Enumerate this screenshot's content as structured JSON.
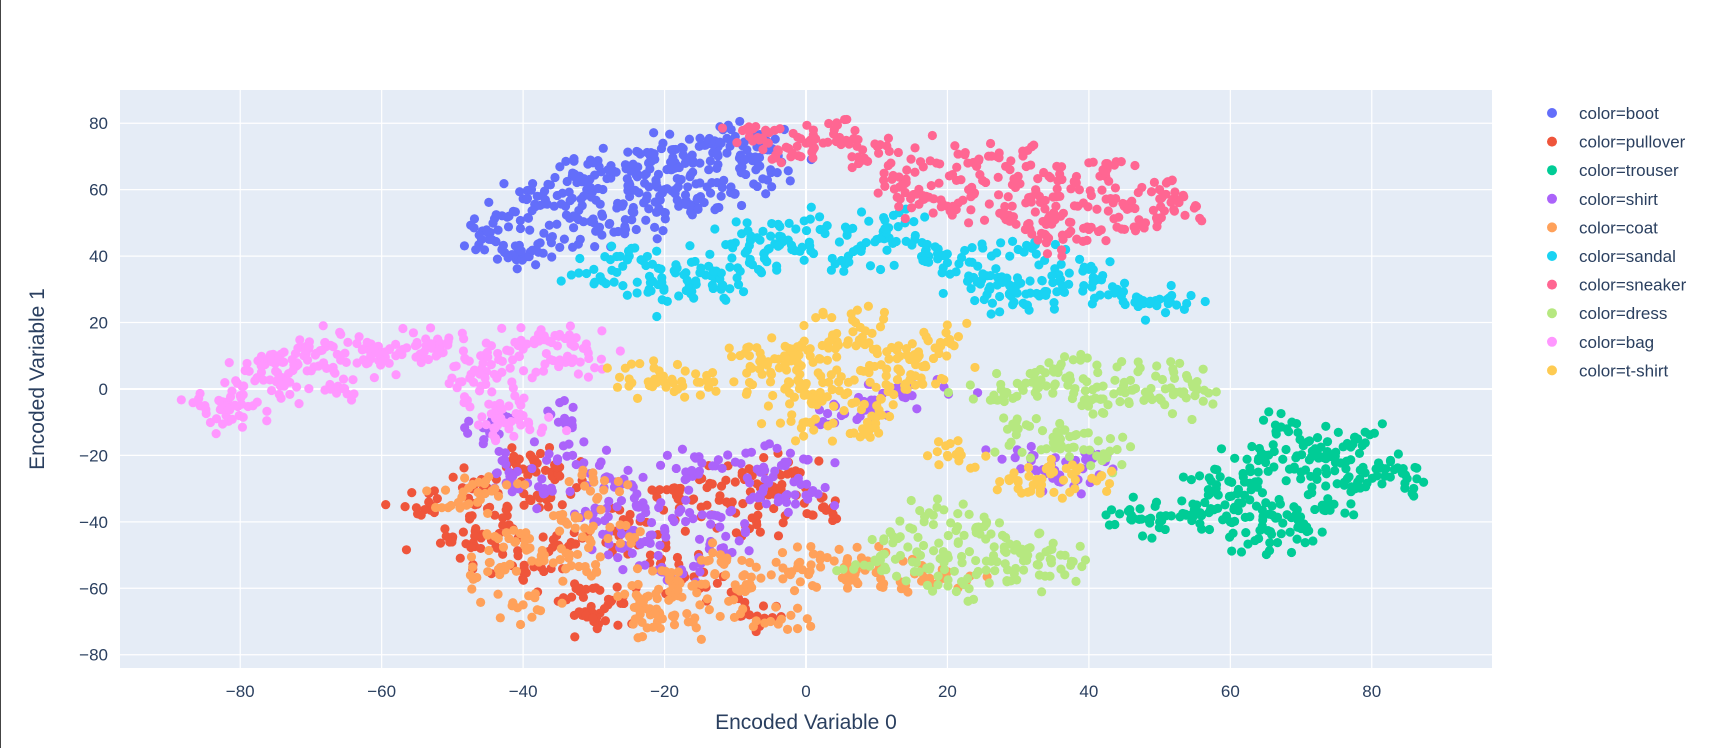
{
  "chart_data": {
    "type": "scatter",
    "xlabel": "Encoded Variable 0",
    "ylabel": "Encoded Variable 1",
    "xlim": [
      -97,
      97
    ],
    "ylim": [
      -84,
      90
    ],
    "x_ticks": [
      -80,
      -60,
      -40,
      -20,
      0,
      20,
      40,
      60,
      80
    ],
    "y_ticks": [
      -80,
      -60,
      -40,
      -20,
      0,
      20,
      40,
      60,
      80
    ],
    "x_tick_labels": [
      "−80",
      "−60",
      "−40",
      "−20",
      "0",
      "20",
      "40",
      "60",
      "80"
    ],
    "y_tick_labels": [
      "−80",
      "−60",
      "−40",
      "−20",
      "0",
      "20",
      "40",
      "60",
      "80"
    ],
    "grid": true,
    "legend_position": "right",
    "plot_background": "#E5ECF6",
    "series": [
      {
        "name": "color=boot",
        "color": "#636efa",
        "points": [
          [
            -45,
            47
          ],
          [
            -42,
            52
          ],
          [
            -38,
            58
          ],
          [
            -34,
            55
          ],
          [
            -31,
            60
          ],
          [
            -28,
            66
          ],
          [
            -25,
            62
          ],
          [
            -22,
            70
          ],
          [
            -19,
            72
          ],
          [
            -16,
            68
          ],
          [
            -13,
            74
          ],
          [
            -10,
            76
          ],
          [
            -8,
            70
          ],
          [
            -5,
            66
          ],
          [
            -30,
            50
          ],
          [
            -26,
            55
          ],
          [
            -20,
            60
          ],
          [
            -36,
            44
          ],
          [
            -40,
            40
          ],
          [
            -15,
            62
          ],
          [
            -12,
            58
          ],
          [
            -24,
            48
          ],
          [
            -33,
            65
          ],
          [
            -18,
            55
          ],
          [
            -6,
            72
          ],
          [
            -43,
            42
          ]
        ]
      },
      {
        "name": "color=pullover",
        "color": "#EF553B",
        "points": [
          [
            -53,
            -35
          ],
          [
            -50,
            -45
          ],
          [
            -47,
            -28
          ],
          [
            -44,
            -38
          ],
          [
            -41,
            -22
          ],
          [
            -38,
            -32
          ],
          [
            -35,
            -47
          ],
          [
            -32,
            -60
          ],
          [
            -28,
            -65
          ],
          [
            -25,
            -40
          ],
          [
            -22,
            -50
          ],
          [
            -18,
            -30
          ],
          [
            -14,
            -35
          ],
          [
            -10,
            -28
          ],
          [
            -7,
            -40
          ],
          [
            -4,
            -30
          ],
          [
            -2,
            -25
          ],
          [
            1,
            -38
          ],
          [
            -40,
            -55
          ],
          [
            -30,
            -70
          ],
          [
            -15,
            -60
          ],
          [
            -8,
            -68
          ],
          [
            -46,
            -48
          ],
          [
            -36,
            -25
          ]
        ]
      },
      {
        "name": "color=trouser",
        "color": "#00cc96",
        "points": [
          [
            46,
            -38
          ],
          [
            50,
            -40
          ],
          [
            55,
            -36
          ],
          [
            58,
            -30
          ],
          [
            62,
            -28
          ],
          [
            65,
            -20
          ],
          [
            68,
            -12
          ],
          [
            70,
            -25
          ],
          [
            72,
            -18
          ],
          [
            75,
            -22
          ],
          [
            78,
            -28
          ],
          [
            82,
            -24
          ],
          [
            85,
            -27
          ],
          [
            66,
            -38
          ],
          [
            70,
            -42
          ],
          [
            64,
            -45
          ],
          [
            60,
            -40
          ],
          [
            73,
            -35
          ],
          [
            78,
            -15
          ],
          [
            62,
            -32
          ]
        ]
      },
      {
        "name": "color=shirt",
        "color": "#ab63fa",
        "points": [
          [
            -42,
            -25
          ],
          [
            -37,
            -30
          ],
          [
            -33,
            -20
          ],
          [
            -30,
            -40
          ],
          [
            -27,
            -28
          ],
          [
            -24,
            -35
          ],
          [
            -20,
            -42
          ],
          [
            -17,
            -25
          ],
          [
            -13,
            -38
          ],
          [
            -10,
            -22
          ],
          [
            -6,
            -30
          ],
          [
            -3,
            -22
          ],
          [
            0,
            -32
          ],
          [
            -26,
            -48
          ],
          [
            -18,
            -55
          ],
          [
            -12,
            -48
          ],
          [
            5,
            -8
          ],
          [
            10,
            -4
          ],
          [
            15,
            -2
          ],
          [
            32,
            -20
          ],
          [
            36,
            -28
          ],
          [
            40,
            -22
          ],
          [
            -45,
            -12
          ],
          [
            -35,
            -10
          ]
        ]
      },
      {
        "name": "color=coat",
        "color": "#FFA15A",
        "points": [
          [
            -48,
            -35
          ],
          [
            -45,
            -55
          ],
          [
            -42,
            -45
          ],
          [
            -40,
            -65
          ],
          [
            -37,
            -50
          ],
          [
            -34,
            -40
          ],
          [
            -31,
            -55
          ],
          [
            -28,
            -45
          ],
          [
            -24,
            -62
          ],
          [
            -21,
            -70
          ],
          [
            -18,
            -58
          ],
          [
            -15,
            -65
          ],
          [
            -12,
            -52
          ],
          [
            -8,
            -60
          ],
          [
            -5,
            -70
          ],
          [
            -2,
            -55
          ],
          [
            2,
            -50
          ],
          [
            6,
            -56
          ],
          [
            10,
            -52
          ],
          [
            14,
            -58
          ],
          [
            20,
            -55
          ],
          [
            -44,
            -30
          ],
          [
            -30,
            -28
          ],
          [
            -22,
            -68
          ]
        ]
      },
      {
        "name": "color=sandal",
        "color": "#19d3f3",
        "points": [
          [
            -22,
            32
          ],
          [
            -18,
            28
          ],
          [
            -15,
            35
          ],
          [
            -12,
            30
          ],
          [
            -8,
            38
          ],
          [
            -5,
            46
          ],
          [
            -2,
            42
          ],
          [
            2,
            48
          ],
          [
            6,
            40
          ],
          [
            10,
            45
          ],
          [
            14,
            50
          ],
          [
            17,
            42
          ],
          [
            20,
            38
          ],
          [
            23,
            34
          ],
          [
            26,
            30
          ],
          [
            29,
            28
          ],
          [
            33,
            28
          ],
          [
            36,
            33
          ],
          [
            40,
            36
          ],
          [
            44,
            30
          ],
          [
            47,
            26
          ],
          [
            50,
            27
          ],
          [
            -30,
            36
          ],
          [
            -25,
            40
          ],
          [
            -10,
            44
          ],
          [
            30,
            42
          ]
        ]
      },
      {
        "name": "color=sneaker",
        "color": "#FF6692",
        "points": [
          [
            -8,
            76
          ],
          [
            -4,
            72
          ],
          [
            0,
            74
          ],
          [
            4,
            78
          ],
          [
            8,
            72
          ],
          [
            12,
            68
          ],
          [
            14,
            62
          ],
          [
            17,
            58
          ],
          [
            20,
            55
          ],
          [
            23,
            60
          ],
          [
            24,
            68
          ],
          [
            27,
            70
          ],
          [
            30,
            64
          ],
          [
            33,
            58
          ],
          [
            36,
            52
          ],
          [
            38,
            62
          ],
          [
            40,
            48
          ],
          [
            42,
            66
          ],
          [
            45,
            55
          ],
          [
            48,
            50
          ],
          [
            50,
            60
          ],
          [
            52,
            54
          ],
          [
            34,
            46
          ],
          [
            28,
            52
          ]
        ]
      },
      {
        "name": "color=dress",
        "color": "#B6E880",
        "points": [
          [
            28,
            -2
          ],
          [
            32,
            2
          ],
          [
            35,
            6
          ],
          [
            38,
            0
          ],
          [
            42,
            -3
          ],
          [
            45,
            2
          ],
          [
            48,
            -1
          ],
          [
            52,
            5
          ],
          [
            55,
            -2
          ],
          [
            30,
            -12
          ],
          [
            34,
            -18
          ],
          [
            38,
            -14
          ],
          [
            42,
            -20
          ],
          [
            13,
            -45
          ],
          [
            16,
            -55
          ],
          [
            20,
            -50
          ],
          [
            24,
            -42
          ],
          [
            27,
            -52
          ],
          [
            30,
            -48
          ],
          [
            33,
            -56
          ],
          [
            36,
            -50
          ],
          [
            18,
            -38
          ],
          [
            22,
            -58
          ],
          [
            10,
            -52
          ]
        ]
      },
      {
        "name": "color=bag",
        "color": "#FF97FF",
        "points": [
          [
            -85,
            -5
          ],
          [
            -82,
            -8
          ],
          [
            -80,
            -2
          ],
          [
            -77,
            5
          ],
          [
            -74,
            8
          ],
          [
            -71,
            10
          ],
          [
            -68,
            14
          ],
          [
            -65,
            8
          ],
          [
            -62,
            12
          ],
          [
            -58,
            10
          ],
          [
            -55,
            14
          ],
          [
            -52,
            13
          ],
          [
            -46,
            10
          ],
          [
            -43,
            5
          ],
          [
            -40,
            12
          ],
          [
            -37,
            16
          ],
          [
            -34,
            8
          ],
          [
            -31,
            12
          ],
          [
            -44,
            -5
          ],
          [
            -42,
            -12
          ],
          [
            -40,
            -8
          ],
          [
            -47,
            2
          ],
          [
            -73,
            2
          ],
          [
            -66,
            0
          ]
        ]
      },
      {
        "name": "color=t-shirt",
        "color": "#FECB52",
        "points": [
          [
            -8,
            10
          ],
          [
            -5,
            5
          ],
          [
            -2,
            12
          ],
          [
            1,
            8
          ],
          [
            4,
            15
          ],
          [
            7,
            20
          ],
          [
            10,
            12
          ],
          [
            13,
            6
          ],
          [
            16,
            10
          ],
          [
            19,
            14
          ],
          [
            -3,
            0
          ],
          [
            2,
            -2
          ],
          [
            6,
            2
          ],
          [
            10,
            -5
          ],
          [
            14,
            0
          ],
          [
            -15,
            2
          ],
          [
            -20,
            2
          ],
          [
            -25,
            3
          ],
          [
            35,
            -25
          ],
          [
            38,
            -30
          ],
          [
            30,
            -28
          ],
          [
            20,
            -20
          ],
          [
            8,
            -12
          ],
          [
            0,
            -10
          ]
        ]
      }
    ]
  }
}
